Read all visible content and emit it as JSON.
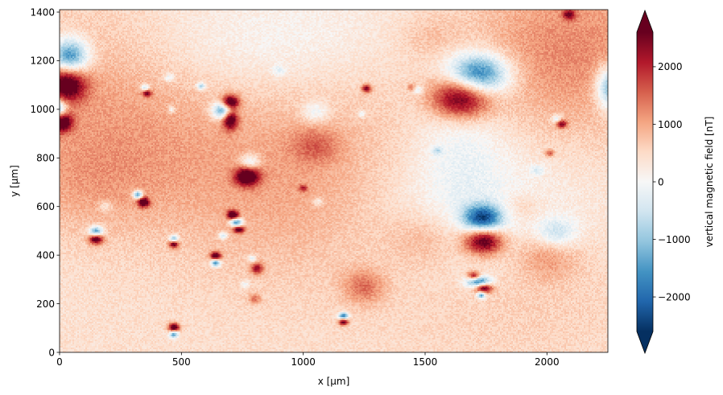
{
  "chart_data": {
    "type": "heatmap",
    "title": "",
    "xlabel": "x [µm]",
    "ylabel": "y [µm]",
    "xlim": [
      0,
      2250
    ],
    "ylim": [
      0,
      1410
    ],
    "x_ticks": [
      0,
      500,
      1000,
      1500,
      2000
    ],
    "y_ticks": [
      0,
      200,
      400,
      600,
      800,
      1000,
      1200,
      1400
    ],
    "grid": false,
    "colorbar": {
      "label": "vertical magnetic field [nT]",
      "colormap": "RdBu_r",
      "vmin": -2600,
      "vmax": 2600,
      "extend": "both",
      "ticks": [
        -2000,
        -1000,
        0,
        1000,
        2000
      ],
      "tick_labels": [
        "−2000",
        "−1000",
        "0",
        "1000",
        "2000"
      ]
    },
    "background_field": [
      {
        "x": 200,
        "y": 1100,
        "value": 700,
        "sx": 380,
        "sy": 260
      },
      {
        "x": 2100,
        "y": 1250,
        "value": 900,
        "sx": 320,
        "sy": 260
      },
      {
        "x": 850,
        "y": 700,
        "value": 500,
        "sx": 420,
        "sy": 280
      },
      {
        "x": 1250,
        "y": 700,
        "value": 250,
        "sx": 350,
        "sy": 300
      },
      {
        "x": 550,
        "y": 1230,
        "value": -400,
        "sx": 320,
        "sy": 160
      },
      {
        "x": 1000,
        "y": 1300,
        "value": -200,
        "sx": 250,
        "sy": 140
      },
      {
        "x": 1650,
        "y": 600,
        "value": -600,
        "sx": 320,
        "sy": 200
      },
      {
        "x": 1650,
        "y": 900,
        "value": -500,
        "sx": 130,
        "sy": 200
      },
      {
        "x": 1900,
        "y": 250,
        "value": 250,
        "sx": 350,
        "sy": 200
      },
      {
        "x": 1500,
        "y": 470,
        "value": 500,
        "sx": 110,
        "sy": 80
      },
      {
        "x": 2000,
        "y": 400,
        "value": 700,
        "sx": 90,
        "sy": 70
      },
      {
        "x": 1050,
        "y": 850,
        "value": 700,
        "sx": 70,
        "sy": 50
      },
      {
        "x": 100,
        "y": 700,
        "value": 450,
        "sx": 250,
        "sy": 150
      }
    ],
    "anomalies": [
      {
        "x": 40,
        "y": 1210,
        "value": -2600,
        "sx": 55,
        "sy": 55
      },
      {
        "x": 30,
        "y": 1110,
        "value": 2600,
        "sx": 55,
        "sy": 55
      },
      {
        "x": -10,
        "y": 1000,
        "value": -2400,
        "sx": 30,
        "sy": 30
      },
      {
        "x": 10,
        "y": 950,
        "value": 2500,
        "sx": 30,
        "sy": 30
      },
      {
        "x": 1720,
        "y": 1140,
        "value": -2600,
        "sx": 85,
        "sy": 60
      },
      {
        "x": 1650,
        "y": 1050,
        "value": 2600,
        "sx": 85,
        "sy": 60
      },
      {
        "x": 2260,
        "y": 1090,
        "value": -2000,
        "sx": 40,
        "sy": 60
      },
      {
        "x": 700,
        "y": 1030,
        "value": 2600,
        "sx": 25,
        "sy": 20
      },
      {
        "x": 670,
        "y": 995,
        "value": -2400,
        "sx": 30,
        "sy": 25
      },
      {
        "x": 700,
        "y": 960,
        "value": 2500,
        "sx": 22,
        "sy": 30
      },
      {
        "x": 780,
        "y": 780,
        "value": -1200,
        "sx": 30,
        "sy": 25
      },
      {
        "x": 770,
        "y": 725,
        "value": 2600,
        "sx": 35,
        "sy": 28
      },
      {
        "x": 1050,
        "y": 990,
        "value": -800,
        "sx": 40,
        "sy": 30
      },
      {
        "x": 1735,
        "y": 550,
        "value": -2600,
        "sx": 55,
        "sy": 40
      },
      {
        "x": 1740,
        "y": 460,
        "value": 2600,
        "sx": 55,
        "sy": 40
      },
      {
        "x": 2040,
        "y": 490,
        "value": -1000,
        "sx": 60,
        "sy": 45
      },
      {
        "x": 1720,
        "y": 290,
        "value": -2400,
        "sx": 35,
        "sy": 18
      },
      {
        "x": 1700,
        "y": 315,
        "value": 2200,
        "sx": 18,
        "sy": 12
      },
      {
        "x": 1740,
        "y": 265,
        "value": 2600,
        "sx": 25,
        "sy": 14
      },
      {
        "x": 1730,
        "y": 235,
        "value": -2000,
        "sx": 12,
        "sy": 10
      },
      {
        "x": 150,
        "y": 495,
        "value": -2400,
        "sx": 20,
        "sy": 16
      },
      {
        "x": 150,
        "y": 468,
        "value": 2600,
        "sx": 20,
        "sy": 16
      },
      {
        "x": 322,
        "y": 648,
        "value": -2400,
        "sx": 14,
        "sy": 12
      },
      {
        "x": 345,
        "y": 618,
        "value": 2600,
        "sx": 16,
        "sy": 14
      },
      {
        "x": 710,
        "y": 565,
        "value": 2600,
        "sx": 16,
        "sy": 13
      },
      {
        "x": 725,
        "y": 535,
        "value": -2400,
        "sx": 18,
        "sy": 12
      },
      {
        "x": 735,
        "y": 505,
        "value": 2200,
        "sx": 15,
        "sy": 10
      },
      {
        "x": 640,
        "y": 395,
        "value": 2600,
        "sx": 15,
        "sy": 13
      },
      {
        "x": 640,
        "y": 370,
        "value": -2400,
        "sx": 14,
        "sy": 12
      },
      {
        "x": 470,
        "y": 468,
        "value": -1800,
        "sx": 13,
        "sy": 11
      },
      {
        "x": 470,
        "y": 445,
        "value": 2200,
        "sx": 13,
        "sy": 11
      },
      {
        "x": 810,
        "y": 345,
        "value": 1600,
        "sx": 18,
        "sy": 16
      },
      {
        "x": 470,
        "y": 102,
        "value": 2600,
        "sx": 16,
        "sy": 13
      },
      {
        "x": 470,
        "y": 75,
        "value": -2000,
        "sx": 13,
        "sy": 11
      },
      {
        "x": 1165,
        "y": 150,
        "value": -2400,
        "sx": 14,
        "sy": 10
      },
      {
        "x": 1165,
        "y": 125,
        "value": 2200,
        "sx": 14,
        "sy": 10
      },
      {
        "x": 1260,
        "y": 1085,
        "value": 2000,
        "sx": 14,
        "sy": 12
      },
      {
        "x": 2060,
        "y": 940,
        "value": 1800,
        "sx": 15,
        "sy": 12
      },
      {
        "x": 2040,
        "y": 960,
        "value": -1000,
        "sx": 15,
        "sy": 12
      },
      {
        "x": 360,
        "y": 1065,
        "value": 1800,
        "sx": 13,
        "sy": 10
      },
      {
        "x": 350,
        "y": 1090,
        "value": -1200,
        "sx": 13,
        "sy": 10
      },
      {
        "x": 580,
        "y": 1095,
        "value": -1500,
        "sx": 12,
        "sy": 10
      },
      {
        "x": 2090,
        "y": 1390,
        "value": 1600,
        "sx": 18,
        "sy": 15
      },
      {
        "x": 1250,
        "y": 270,
        "value": 900,
        "sx": 60,
        "sy": 50
      },
      {
        "x": 1900,
        "y": 600,
        "value": 400,
        "sx": 60,
        "sy": 40
      },
      {
        "x": 2010,
        "y": 820,
        "value": 1200,
        "sx": 13,
        "sy": 10
      },
      {
        "x": 190,
        "y": 600,
        "value": -600,
        "sx": 20,
        "sy": 15
      },
      {
        "x": 670,
        "y": 480,
        "value": -1200,
        "sx": 13,
        "sy": 10
      },
      {
        "x": 460,
        "y": 1000,
        "value": -900,
        "sx": 10,
        "sy": 10
      },
      {
        "x": 1000,
        "y": 675,
        "value": 1200,
        "sx": 12,
        "sy": 10
      },
      {
        "x": 1470,
        "y": 1080,
        "value": -800,
        "sx": 15,
        "sy": 12
      },
      {
        "x": 1550,
        "y": 830,
        "value": -800,
        "sx": 15,
        "sy": 12
      },
      {
        "x": 1060,
        "y": 620,
        "value": -700,
        "sx": 15,
        "sy": 12
      },
      {
        "x": 450,
        "y": 1130,
        "value": -800,
        "sx": 15,
        "sy": 12
      },
      {
        "x": 1445,
        "y": 1090,
        "value": 900,
        "sx": 12,
        "sy": 10
      },
      {
        "x": 900,
        "y": 1160,
        "value": -600,
        "sx": 20,
        "sy": 15
      },
      {
        "x": 1960,
        "y": 750,
        "value": -600,
        "sx": 20,
        "sy": 15
      },
      {
        "x": 790,
        "y": 385,
        "value": -900,
        "sx": 12,
        "sy": 10
      },
      {
        "x": 800,
        "y": 220,
        "value": 900,
        "sx": 18,
        "sy": 14
      },
      {
        "x": 760,
        "y": 280,
        "value": -600,
        "sx": 14,
        "sy": 12
      },
      {
        "x": 1240,
        "y": 980,
        "value": -800,
        "sx": 10,
        "sy": 10
      },
      {
        "x": 1520,
        "y": 1300,
        "value": 300,
        "sx": 80,
        "sy": 60
      }
    ]
  }
}
